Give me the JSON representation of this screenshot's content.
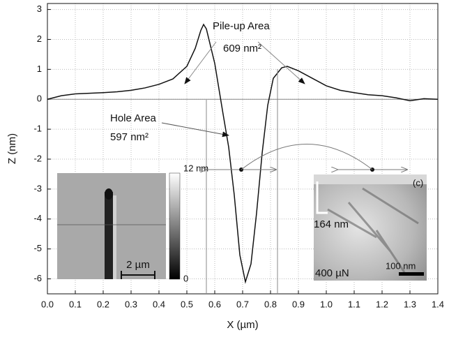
{
  "chart_data": {
    "type": "line",
    "xlabel": "X (µm)",
    "ylabel": "Z (nm)",
    "x": [
      0.0,
      0.05,
      0.1,
      0.15,
      0.2,
      0.25,
      0.3,
      0.35,
      0.4,
      0.45,
      0.5,
      0.53,
      0.55,
      0.56,
      0.57,
      0.6,
      0.63,
      0.65,
      0.67,
      0.69,
      0.71,
      0.73,
      0.75,
      0.77,
      0.79,
      0.81,
      0.84,
      0.86,
      0.9,
      0.95,
      1.0,
      1.05,
      1.1,
      1.15,
      1.2,
      1.25,
      1.3,
      1.35,
      1.4
    ],
    "series": [
      {
        "color": "#111111",
        "values": [
          0.0,
          0.12,
          0.18,
          0.2,
          0.22,
          0.25,
          0.3,
          0.38,
          0.5,
          0.68,
          1.1,
          1.7,
          2.3,
          2.5,
          2.35,
          1.2,
          -0.5,
          -1.6,
          -3.2,
          -5.2,
          -6.1,
          -5.5,
          -3.8,
          -1.8,
          -0.2,
          0.7,
          1.05,
          1.1,
          0.95,
          0.7,
          0.45,
          0.3,
          0.22,
          0.15,
          0.12,
          0.05,
          -0.05,
          0.02,
          0.0
        ]
      }
    ],
    "xlim": [
      0.0,
      1.4
    ],
    "ylim": [
      -6.5,
      3.2
    ],
    "xticks": [
      {
        "value": 0,
        "label": "0.0"
      },
      0.1,
      0.2,
      0.3,
      0.4,
      0.5,
      0.6,
      0.7,
      0.8,
      0.9,
      {
        "value": 1,
        "label": "1.0"
      },
      1.1,
      1.2,
      1.3,
      1.4
    ],
    "yticks": [
      3,
      2,
      1,
      0,
      -1,
      -2,
      -3,
      -4,
      -5,
      -6
    ],
    "grid": true,
    "annotations": [
      "Pile-up Area",
      "609 nm²",
      "Hole Area",
      "597 nm²"
    ],
    "insets": {
      "left": {
        "colorbar_max": "12 nm",
        "colorbar_min": "0",
        "scale": "2 µm"
      },
      "right": {
        "label": "(c)",
        "depth": "164 nm",
        "load": "400 µN",
        "scale": "100 nm"
      }
    }
  }
}
